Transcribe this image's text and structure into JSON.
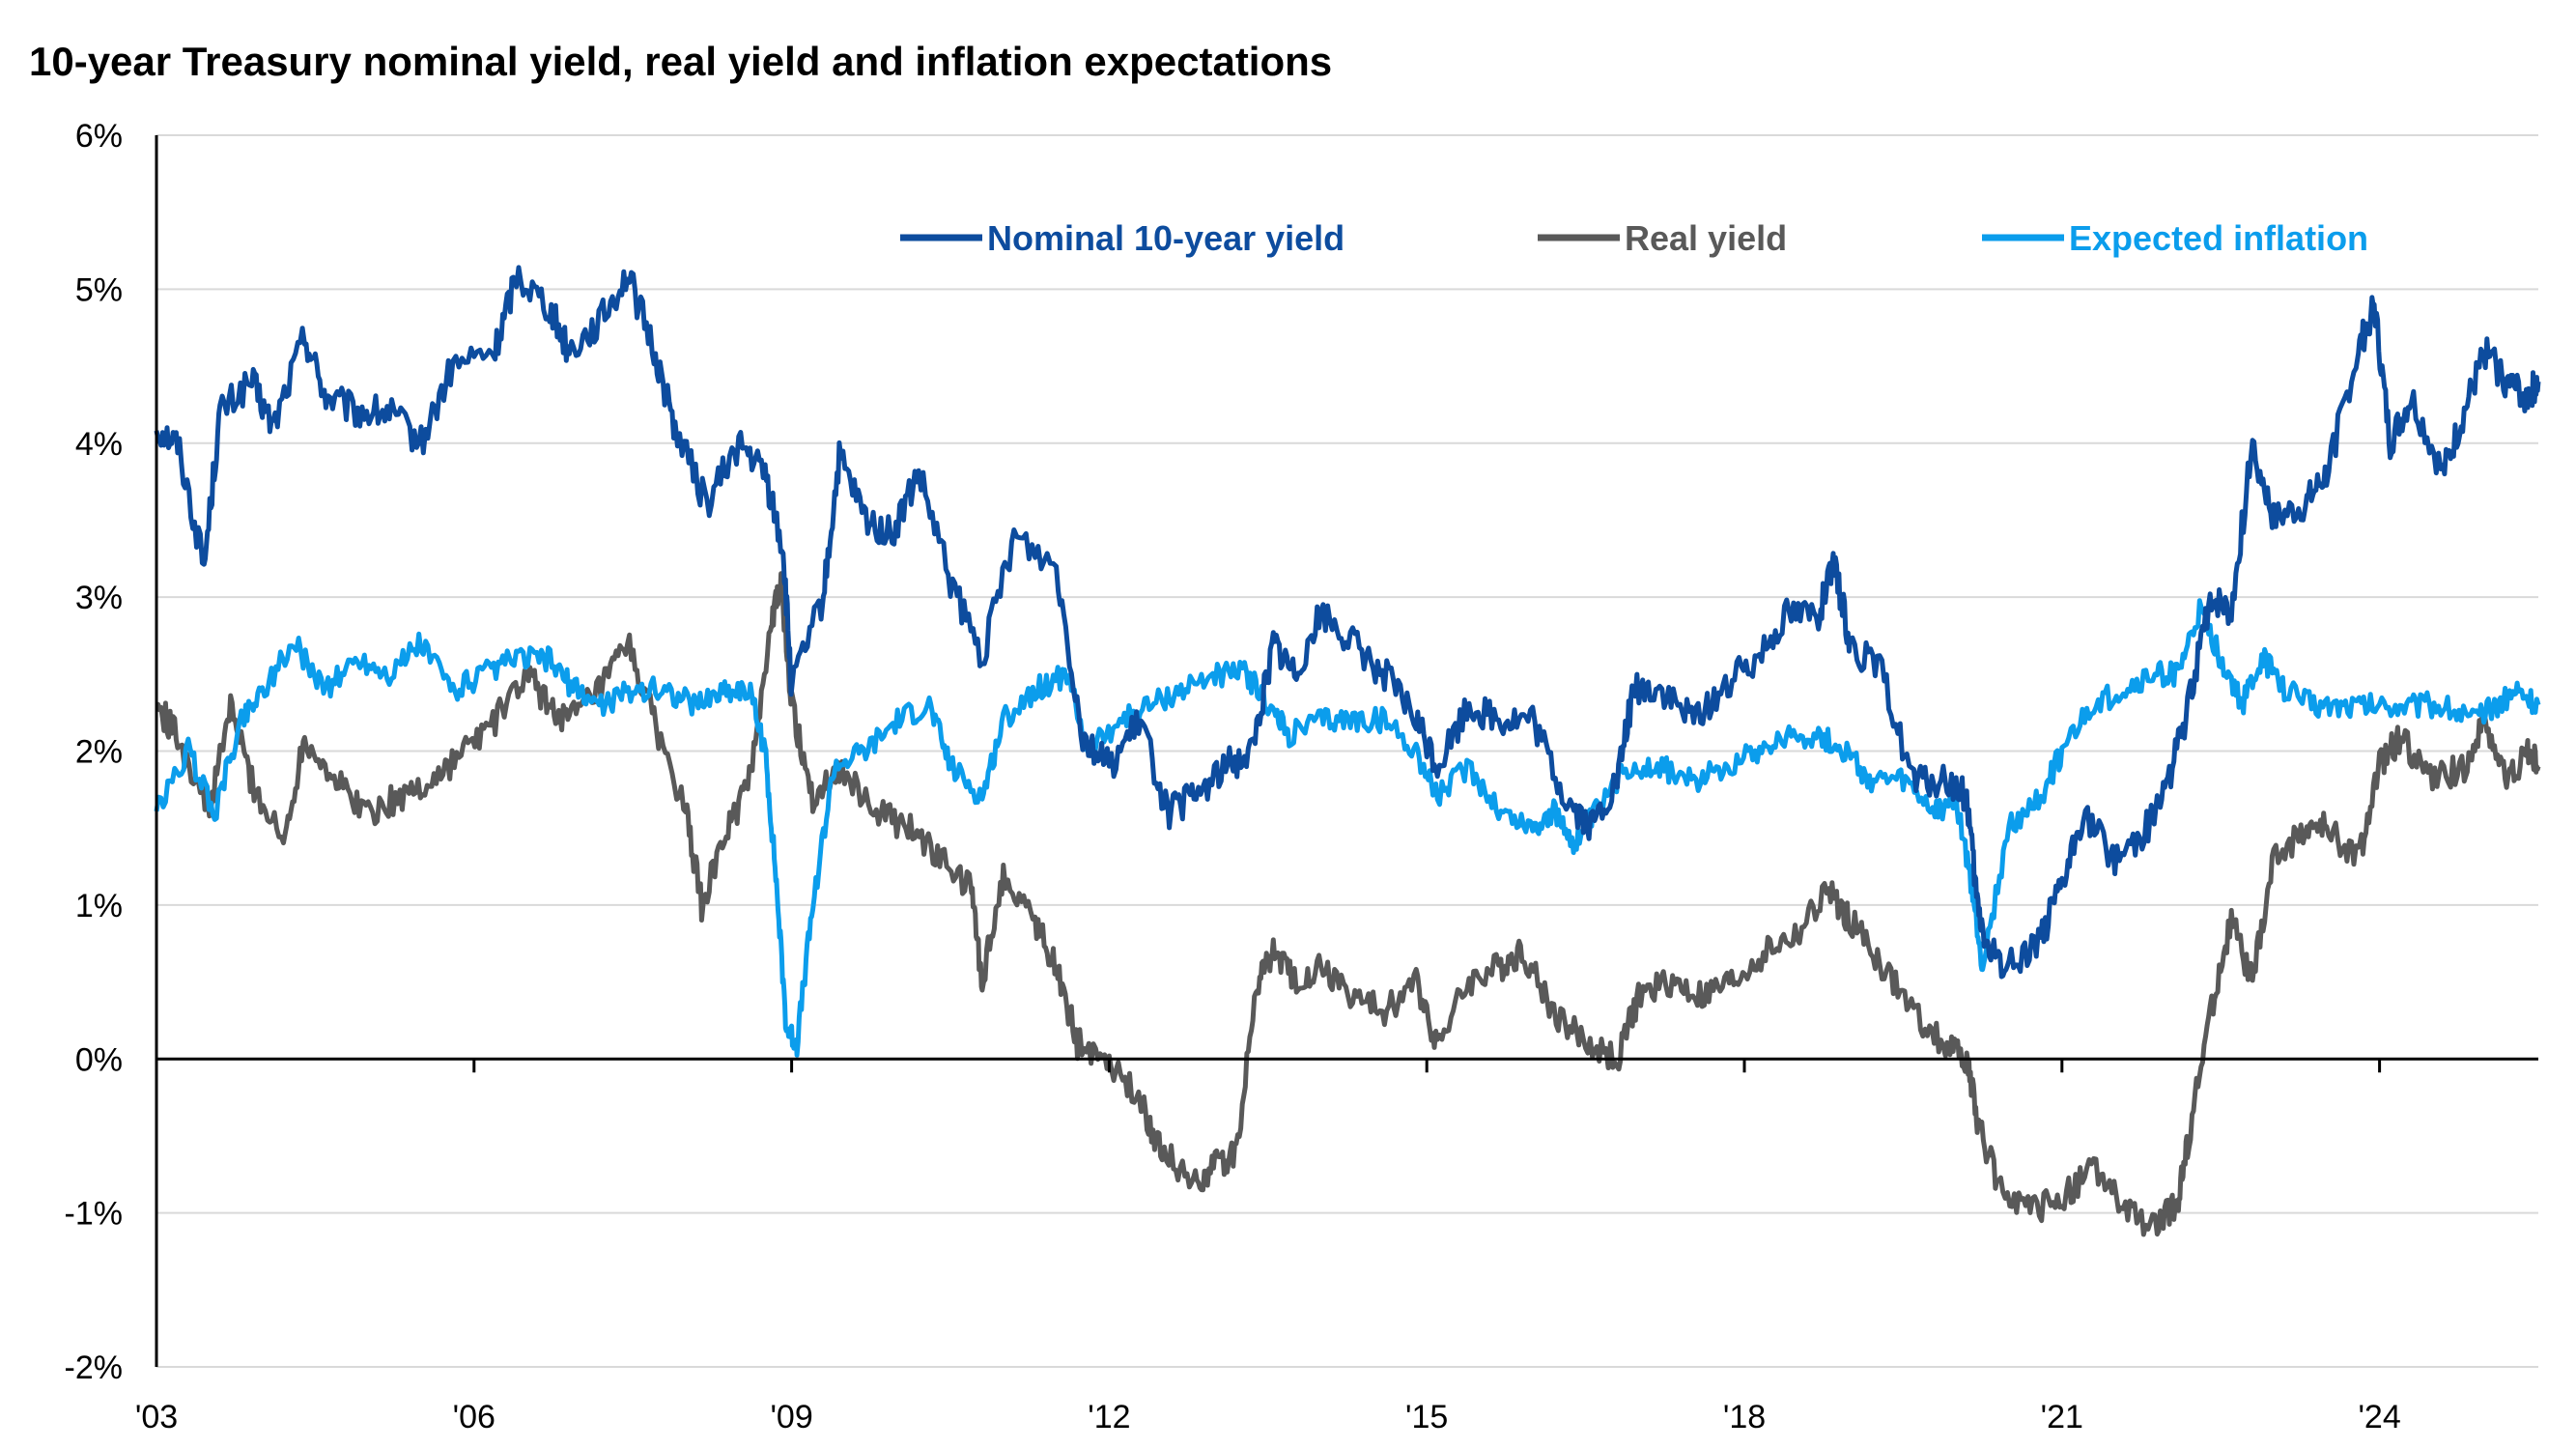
{
  "chart_data": {
    "type": "line",
    "title": "10-year Treasury nominal yield, real yield and inflation expectations",
    "xlabel": "",
    "ylabel": "",
    "xlim": [
      2003.0,
      2025.5
    ],
    "ylim": [
      -2,
      6
    ],
    "y_ticks": [
      "-2%",
      "-1%",
      "0%",
      "1%",
      "2%",
      "3%",
      "4%",
      "5%",
      "6%"
    ],
    "y_tick_values": [
      -2,
      -1,
      0,
      1,
      2,
      3,
      4,
      5,
      6
    ],
    "x_ticks": [
      "'03",
      "'06",
      "'09",
      "'12",
      "'15",
      "'18",
      "'21",
      "'24"
    ],
    "x_tick_values": [
      2003,
      2006,
      2009,
      2012,
      2015,
      2018,
      2021,
      2024
    ],
    "grid": true,
    "legend_position": "top",
    "series": [
      {
        "name": "Nominal 10-year yield",
        "color": "#0D4C9E",
        "x": [
          2003.0,
          2003.2,
          2003.45,
          2003.6,
          2003.9,
          2004.1,
          2004.4,
          2004.6,
          2004.9,
          2005.2,
          2005.5,
          2005.8,
          2006.2,
          2006.4,
          2006.7,
          2006.9,
          2007.2,
          2007.45,
          2007.7,
          2007.9,
          2008.2,
          2008.5,
          2008.75,
          2008.92,
          2009.0,
          2009.3,
          2009.45,
          2009.7,
          2009.95,
          2010.2,
          2010.5,
          2010.8,
          2011.1,
          2011.5,
          2011.75,
          2012.0,
          2012.3,
          2012.55,
          2012.8,
          2013.1,
          2013.35,
          2013.55,
          2013.75,
          2014.0,
          2014.3,
          2014.6,
          2014.9,
          2015.1,
          2015.4,
          2015.7,
          2016.0,
          2016.3,
          2016.55,
          2016.8,
          2016.95,
          2017.2,
          2017.5,
          2017.8,
          2018.1,
          2018.4,
          2018.7,
          2018.85,
          2019.0,
          2019.3,
          2019.6,
          2019.9,
          2020.1,
          2020.2,
          2020.3,
          2020.5,
          2020.8,
          2021.0,
          2021.2,
          2021.5,
          2021.8,
          2022.0,
          2022.2,
          2022.4,
          2022.6,
          2022.8,
          2023.0,
          2023.3,
          2023.5,
          2023.8,
          2023.95,
          2024.1,
          2024.3,
          2024.6,
          2024.8,
          2025.0,
          2025.2,
          2025.4,
          2025.5
        ],
        "values": [
          4.1,
          4.0,
          3.2,
          4.2,
          4.4,
          4.1,
          4.7,
          4.3,
          4.2,
          4.2,
          4.0,
          4.5,
          4.6,
          5.1,
          4.9,
          4.6,
          4.8,
          5.1,
          4.6,
          4.1,
          3.6,
          4.0,
          3.8,
          3.3,
          2.4,
          3.0,
          3.9,
          3.5,
          3.4,
          3.8,
          3.1,
          2.6,
          3.4,
          3.2,
          2.1,
          1.9,
          2.2,
          1.6,
          1.7,
          1.9,
          2.0,
          2.7,
          2.5,
          2.9,
          2.7,
          2.5,
          2.2,
          1.9,
          2.3,
          2.2,
          2.2,
          1.7,
          1.5,
          1.8,
          2.4,
          2.4,
          2.2,
          2.4,
          2.6,
          2.9,
          2.9,
          3.2,
          2.7,
          2.5,
          1.8,
          1.8,
          1.7,
          1.0,
          0.7,
          0.6,
          0.8,
          1.1,
          1.6,
          1.3,
          1.5,
          1.8,
          2.3,
          3.0,
          2.9,
          4.0,
          3.5,
          3.6,
          3.8,
          4.6,
          4.9,
          4.0,
          4.3,
          3.8,
          4.2,
          4.6,
          4.4,
          4.3,
          4.4
        ]
      },
      {
        "name": "Real yield",
        "color": "#595959",
        "x": [
          2003.0,
          2003.2,
          2003.5,
          2003.7,
          2003.9,
          2004.2,
          2004.4,
          2004.7,
          2005.0,
          2005.3,
          2005.6,
          2005.9,
          2006.2,
          2006.5,
          2006.7,
          2006.9,
          2007.2,
          2007.45,
          2007.7,
          2008.0,
          2008.15,
          2008.4,
          2008.6,
          2008.8,
          2008.9,
          2009.0,
          2009.2,
          2009.45,
          2009.8,
          2010.1,
          2010.4,
          2010.7,
          2010.8,
          2011.0,
          2011.3,
          2011.5,
          2011.7,
          2012.0,
          2012.3,
          2012.5,
          2012.8,
          2013.0,
          2013.2,
          2013.4,
          2013.55,
          2013.75,
          2014.0,
          2014.3,
          2014.6,
          2014.9,
          2015.1,
          2015.4,
          2015.7,
          2015.9,
          2016.2,
          2016.5,
          2016.8,
          2017.0,
          2017.3,
          2017.6,
          2017.9,
          2018.2,
          2018.5,
          2018.8,
          2019.0,
          2019.3,
          2019.6,
          2019.9,
          2020.1,
          2020.2,
          2020.4,
          2020.7,
          2021.0,
          2021.3,
          2021.6,
          2021.9,
          2022.1,
          2022.2,
          2022.4,
          2022.6,
          2022.8,
          2023.0,
          2023.3,
          2023.5,
          2023.8,
          2024.0,
          2024.2,
          2024.5,
          2024.8,
          2025.0,
          2025.2,
          2025.4,
          2025.5
        ],
        "values": [
          2.3,
          2.1,
          1.6,
          2.3,
          1.8,
          1.4,
          2.1,
          1.8,
          1.6,
          1.7,
          1.8,
          2.0,
          2.2,
          2.5,
          2.3,
          2.2,
          2.4,
          2.7,
          2.2,
          1.6,
          1.0,
          1.5,
          1.8,
          2.8,
          3.1,
          2.3,
          1.7,
          1.9,
          1.6,
          1.5,
          1.3,
          1.1,
          0.5,
          1.2,
          0.9,
          0.6,
          0.1,
          0.0,
          -0.3,
          -0.6,
          -0.8,
          -0.7,
          -0.6,
          0.5,
          0.7,
          0.5,
          0.6,
          0.4,
          0.3,
          0.5,
          0.1,
          0.5,
          0.6,
          0.7,
          0.3,
          0.1,
          0.0,
          0.4,
          0.5,
          0.4,
          0.5,
          0.7,
          0.8,
          1.1,
          0.9,
          0.6,
          0.3,
          0.1,
          0.0,
          -0.4,
          -0.8,
          -1.0,
          -0.9,
          -0.7,
          -1.0,
          -1.1,
          -0.9,
          -0.5,
          0.3,
          0.9,
          0.5,
          1.3,
          1.5,
          1.5,
          1.3,
          1.9,
          2.1,
          1.8,
          1.9,
          2.2,
          1.8,
          2.0,
          1.9
        ]
      },
      {
        "name": "Expected inflation",
        "color": "#0B9DEC",
        "x": [
          2003.0,
          2003.3,
          2003.55,
          2003.8,
          2004.0,
          2004.3,
          2004.6,
          2004.9,
          2005.2,
          2005.5,
          2005.8,
          2006.1,
          2006.4,
          2006.7,
          2006.95,
          2007.2,
          2007.5,
          2007.8,
          2008.1,
          2008.35,
          2008.6,
          2008.75,
          2008.85,
          2008.95,
          2009.05,
          2009.2,
          2009.4,
          2009.7,
          2010.0,
          2010.3,
          2010.5,
          2010.8,
          2011.0,
          2011.3,
          2011.6,
          2011.8,
          2012.1,
          2012.4,
          2012.7,
          2013.0,
          2013.3,
          2013.5,
          2013.7,
          2014.0,
          2014.3,
          2014.6,
          2014.9,
          2015.1,
          2015.4,
          2015.7,
          2016.0,
          2016.2,
          2016.4,
          2016.6,
          2016.9,
          2017.2,
          2017.5,
          2017.8,
          2018.1,
          2018.4,
          2018.7,
          2018.95,
          2019.2,
          2019.5,
          2019.8,
          2020.0,
          2020.15,
          2020.25,
          2020.5,
          2020.8,
          2021.0,
          2021.3,
          2021.6,
          2021.9,
          2022.1,
          2022.3,
          2022.5,
          2022.7,
          2022.9,
          2023.1,
          2023.4,
          2023.7,
          2024.0,
          2024.3,
          2024.6,
          2024.9,
          2025.1,
          2025.3,
          2025.5
        ],
        "values": [
          1.6,
          2.0,
          1.6,
          2.2,
          2.4,
          2.7,
          2.4,
          2.6,
          2.5,
          2.7,
          2.4,
          2.5,
          2.6,
          2.6,
          2.4,
          2.3,
          2.4,
          2.4,
          2.3,
          2.4,
          2.4,
          2.0,
          1.2,
          0.2,
          0.1,
          1.0,
          1.9,
          2.0,
          2.2,
          2.3,
          1.9,
          1.7,
          2.2,
          2.4,
          2.5,
          2.0,
          2.2,
          2.3,
          2.4,
          2.5,
          2.5,
          2.3,
          2.1,
          2.2,
          2.2,
          2.2,
          2.0,
          1.7,
          1.9,
          1.6,
          1.5,
          1.6,
          1.4,
          1.6,
          1.9,
          1.9,
          1.8,
          1.9,
          2.0,
          2.1,
          2.1,
          2.0,
          1.8,
          1.8,
          1.6,
          1.7,
          1.1,
          0.6,
          1.5,
          1.7,
          2.0,
          2.3,
          2.4,
          2.5,
          2.5,
          2.9,
          2.6,
          2.3,
          2.6,
          2.4,
          2.3,
          2.3,
          2.3,
          2.3,
          2.3,
          2.2,
          2.3,
          2.4,
          2.3
        ]
      }
    ]
  }
}
